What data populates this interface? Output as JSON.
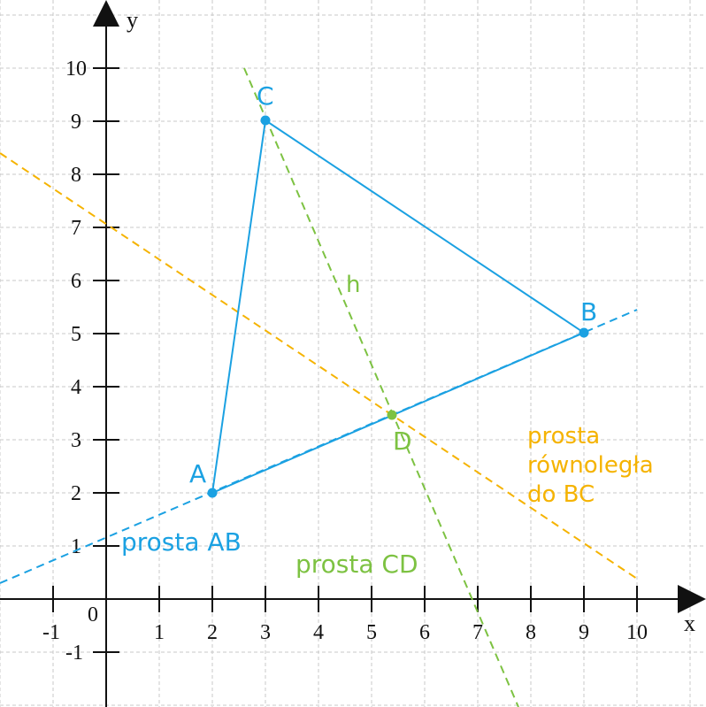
{
  "axes": {
    "x_label": "x",
    "y_label": "y",
    "origin_label": "0",
    "x_ticks": [
      "-1",
      "1",
      "2",
      "3",
      "4",
      "5",
      "6",
      "7",
      "8",
      "9",
      "10"
    ],
    "y_ticks": [
      "10",
      "9",
      "8",
      "7",
      "6",
      "5",
      "4",
      "3",
      "2",
      "1",
      "-1"
    ],
    "x_range": [
      -2,
      11
    ],
    "y_range": [
      -2,
      11
    ],
    "grid": true
  },
  "points": {
    "A": {
      "label": "A",
      "x": 2,
      "y": 2,
      "color": "#1ba1e2"
    },
    "B": {
      "label": "B",
      "x": 9,
      "y": 5,
      "color": "#1ba1e2"
    },
    "C": {
      "label": "C",
      "x": 3,
      "y": 9,
      "color": "#1ba1e2"
    },
    "D": {
      "label": "D",
      "x": 5.36,
      "y": 3.44,
      "color": "#7dc242"
    }
  },
  "lines": {
    "ab": {
      "label": "prosta AB",
      "color": "#1ba1e2"
    },
    "cd": {
      "label": "prosta CD",
      "color": "#7dc242"
    },
    "h": {
      "label": "h",
      "color": "#7dc242"
    },
    "parallel": {
      "label_line1": "prosta",
      "label_line2": "równoległa",
      "label_line3": "do BC",
      "color": "#f5b301"
    }
  },
  "colors": {
    "triangle": "#1ba1e2",
    "grid": "#c8c8c8",
    "axis": "#111111"
  }
}
